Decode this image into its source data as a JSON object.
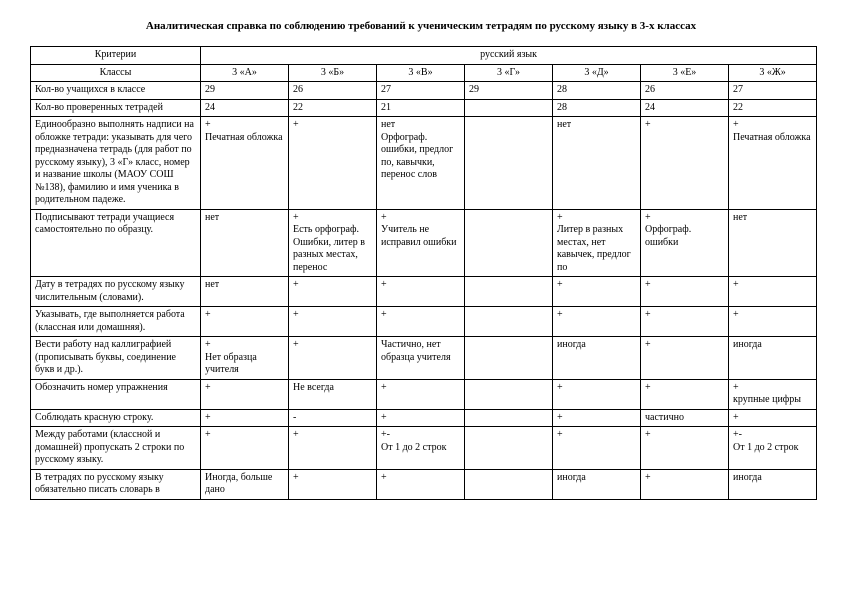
{
  "title": "Аналитическая справка по соблюдению требований к ученическим тетрадям по русскому языку в 3-х классах",
  "headerRow1": {
    "criteria": "Критерии",
    "subject": "русский язык"
  },
  "headerRow2": {
    "classes": "Классы",
    "a": "3 «А»",
    "b": "3 «Б»",
    "v": "3 «В»",
    "g": "3 «Г»",
    "d": "3 «Д»",
    "e": "3 «Е»",
    "zh": "3 «Ж»"
  },
  "rows": [
    {
      "crit": "Кол-во учащихся в классе",
      "a": "29",
      "b": "26",
      "v": "27",
      "g": "29",
      "d": "28",
      "e": "26",
      "zh": "27"
    },
    {
      "crit": "Кол-во проверенных тетрадей",
      "a": "24",
      "b": "22",
      "v": "21",
      "g": "",
      "d": "28",
      "e": "24",
      "zh": "22"
    },
    {
      "crit": "Единообразно выполнять надписи на обложке тетради: указывать для чего предназначена тетрадь (для работ по русскому языку), 3 «Г» класс, номер и название школы (МАОУ СОШ №138), фамилию и имя ученика в родительном падеже.",
      "a": "+\nПечатная обложка",
      "b": "+",
      "v": "нет\nОрфограф. ошибки, предлог по, кавычки, перенос слов",
      "g": "",
      "d": "нет",
      "e": "+",
      "zh": "+\nПечатная обложка"
    },
    {
      "crit": "Подписывают тетради учащиеся самостоятельно по образцу.",
      "a": "нет",
      "b": "+\nЕсть орфограф.\nОшибки, литер в разных местах, перенос",
      "v": "+\nУчитель не исправил ошибки",
      "g": "",
      "d": "+\nЛитер в разных местах, нет кавычек, предлог по",
      "e": "+\nОрфограф. ошибки",
      "zh": "нет"
    },
    {
      "crit": "Дату в тетрадях по русскому языку числительным (словами).",
      "a": "нет",
      "b": "+",
      "v": "+",
      "g": "",
      "d": "+",
      "e": "+",
      "zh": "+"
    },
    {
      "crit": "Указывать, где выполняется работа (классная или домашняя).",
      "a": "+",
      "b": "+",
      "v": "+",
      "g": "",
      "d": "+",
      "e": "+",
      "zh": "+"
    },
    {
      "crit": "Вести работу над каллиграфией (прописывать буквы, соединение букв и др.).",
      "a": "+\nНет образца учителя",
      "b": "+",
      "v": "Частично, нет образца учителя",
      "g": "",
      "d": "иногда",
      "e": "+",
      "zh": "иногда"
    },
    {
      "crit": "Обозначить номер упражнения",
      "a": "+",
      "b": "Не всегда",
      "v": "+",
      "g": "",
      "d": "+",
      "e": "+",
      "zh": "+\nкрупные цифры"
    },
    {
      "crit": "Соблюдать красную строку.",
      "a": "+",
      "b": "-",
      "v": "+",
      "g": "",
      "d": "+",
      "e": "частично",
      "zh": "+"
    },
    {
      "crit": "Между работами (классной и домашней) пропускать 2 строки по русскому языку.",
      "a": "+",
      "b": "+",
      "v": "+-\nОт 1 до 2 строк",
      "g": "",
      "d": "+",
      "e": "+",
      "zh": "+-\nОт 1 до 2 строк"
    },
    {
      "crit": "В тетрадях по русскому языку обязательно писать словарь в",
      "a": "Иногда, больше дано",
      "b": "+",
      "v": "+",
      "g": "",
      "d": "иногда",
      "e": "+",
      "zh": "иногда"
    }
  ]
}
